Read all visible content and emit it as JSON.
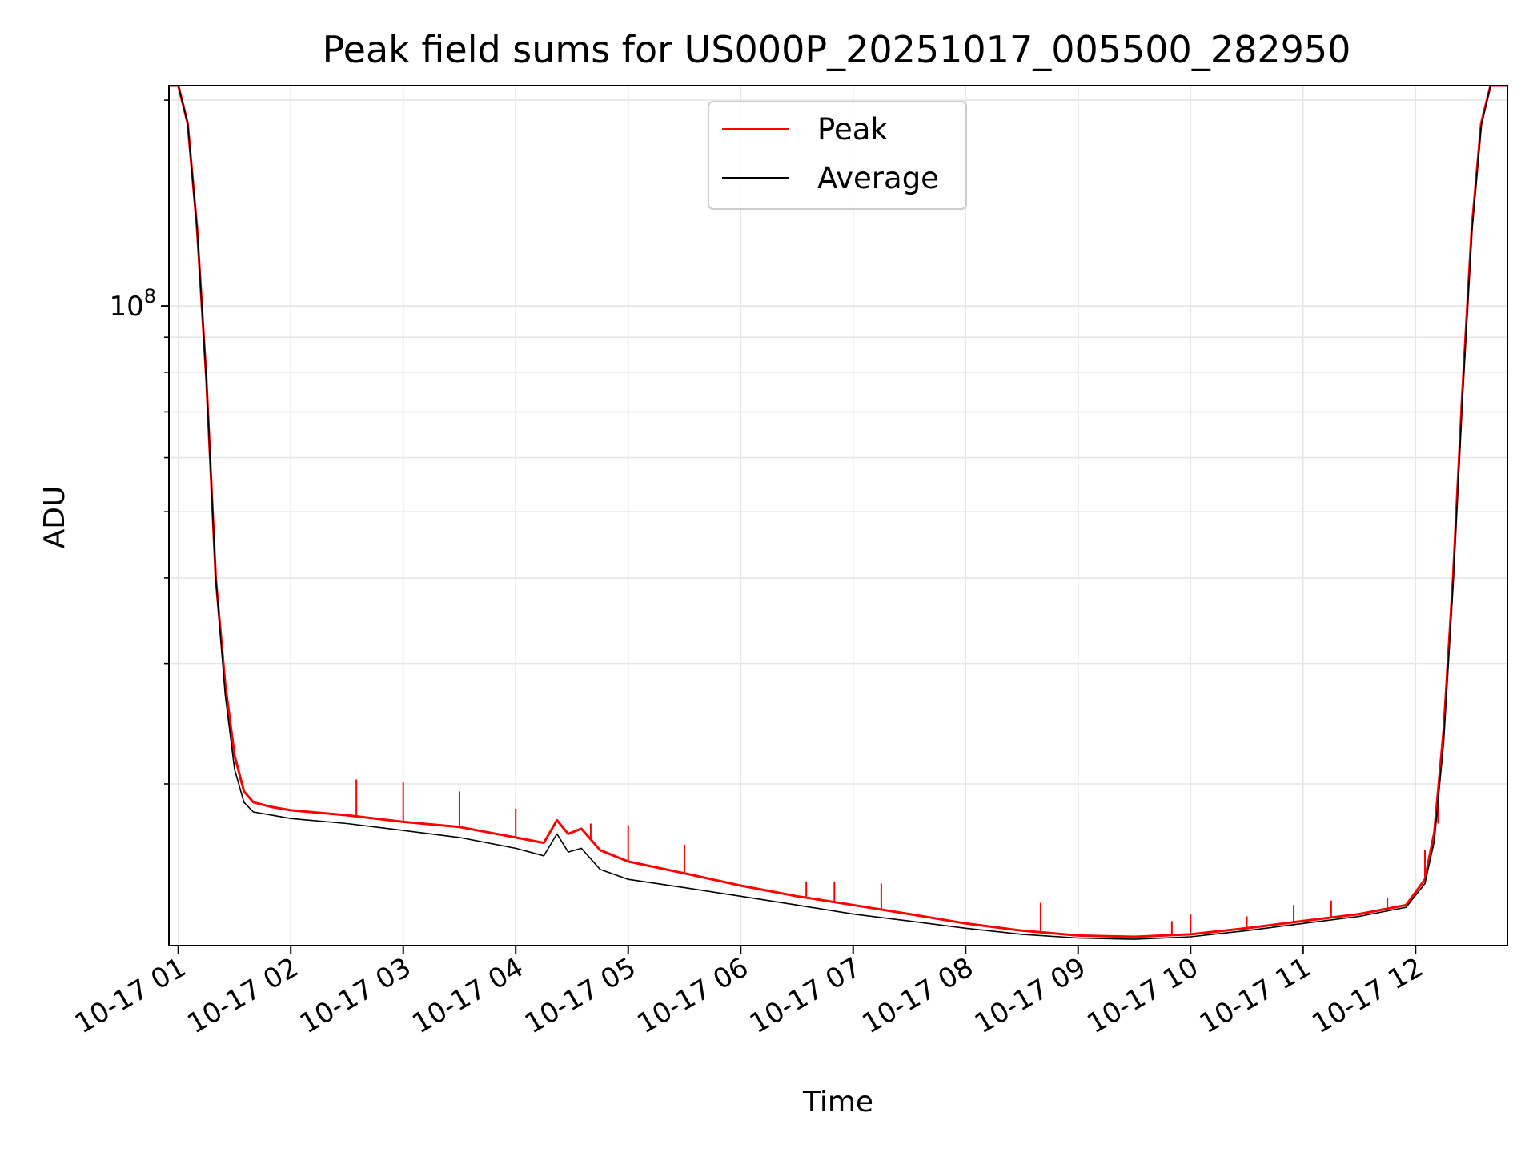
{
  "chart_data": {
    "type": "line",
    "title": "Peak field sums for US000P_20251017_005500_282950",
    "xlabel": "Time",
    "ylabel": "ADU",
    "yscale": "log",
    "ylim": [
      11600000,
      210000000
    ],
    "xlim": [
      "2025-10-17 00:55",
      "2025-10-17 12:49"
    ],
    "x_ticks": [
      "10-17 01",
      "10-17 02",
      "10-17 03",
      "10-17 04",
      "10-17 05",
      "10-17 06",
      "10-17 07",
      "10-17 08",
      "10-17 09",
      "10-17 10",
      "10-17 11",
      "10-17 12"
    ],
    "y_major_tick_label": "10",
    "y_major_tick_exponent": "8",
    "grid": true,
    "legend_position": "upper center",
    "series": [
      {
        "name": "Peak",
        "color": "#ff0000",
        "x": [
          "2025-10-17 00:55",
          "2025-10-17 01:00",
          "2025-10-17 01:05",
          "2025-10-17 01:10",
          "2025-10-17 01:15",
          "2025-10-17 01:20",
          "2025-10-17 01:25",
          "2025-10-17 01:30",
          "2025-10-17 01:35",
          "2025-10-17 01:40",
          "2025-10-17 01:50",
          "2025-10-17 02:00",
          "2025-10-17 02:30",
          "2025-10-17 03:00",
          "2025-10-17 03:30",
          "2025-10-17 04:00",
          "2025-10-17 04:15",
          "2025-10-17 04:22",
          "2025-10-17 04:28",
          "2025-10-17 04:35",
          "2025-10-17 04:45",
          "2025-10-17 05:00",
          "2025-10-17 05:30",
          "2025-10-17 06:00",
          "2025-10-17 06:30",
          "2025-10-17 07:00",
          "2025-10-17 07:30",
          "2025-10-17 08:00",
          "2025-10-17 08:30",
          "2025-10-17 09:00",
          "2025-10-17 09:30",
          "2025-10-17 10:00",
          "2025-10-17 10:30",
          "2025-10-17 11:00",
          "2025-10-17 11:30",
          "2025-10-17 11:55",
          "2025-10-17 12:05",
          "2025-10-17 12:10",
          "2025-10-17 12:15",
          "2025-10-17 12:20",
          "2025-10-17 12:25",
          "2025-10-17 12:30",
          "2025-10-17 12:35",
          "2025-10-17 12:40",
          "2025-10-17 12:45",
          "2025-10-17 12:49"
        ],
        "values": [
          210000000,
          210000000,
          185000000,
          130000000,
          78000000,
          40000000,
          28000000,
          22000000,
          19500000,
          18800000,
          18500000,
          18300000,
          18000000,
          17600000,
          17300000,
          16700000,
          16400000,
          17700000,
          16900000,
          17200000,
          16000000,
          15400000,
          14800000,
          14200000,
          13700000,
          13300000,
          12900000,
          12500000,
          12200000,
          12000000,
          11950000,
          12050000,
          12300000,
          12600000,
          12900000,
          13300000,
          14500000,
          17000000,
          24000000,
          40000000,
          75000000,
          130000000,
          185000000,
          210000000,
          210000000,
          210000000
        ],
        "spikes": [
          {
            "x": "2025-10-17 02:35",
            "value": 20300000
          },
          {
            "x": "2025-10-17 03:00",
            "value": 20100000
          },
          {
            "x": "2025-10-17 03:30",
            "value": 19500000
          },
          {
            "x": "2025-10-17 04:00",
            "value": 18400000
          },
          {
            "x": "2025-10-17 04:40",
            "value": 17500000
          },
          {
            "x": "2025-10-17 05:00",
            "value": 17400000
          },
          {
            "x": "2025-10-17 05:30",
            "value": 16300000
          },
          {
            "x": "2025-10-17 06:35",
            "value": 14400000
          },
          {
            "x": "2025-10-17 06:50",
            "value": 14400000
          },
          {
            "x": "2025-10-17 07:15",
            "value": 14300000
          },
          {
            "x": "2025-10-17 08:40",
            "value": 13400000
          },
          {
            "x": "2025-10-17 09:50",
            "value": 12600000
          },
          {
            "x": "2025-10-17 10:00",
            "value": 12900000
          },
          {
            "x": "2025-10-17 10:30",
            "value": 12800000
          },
          {
            "x": "2025-10-17 10:55",
            "value": 13300000
          },
          {
            "x": "2025-10-17 11:15",
            "value": 13500000
          },
          {
            "x": "2025-10-17 11:45",
            "value": 13600000
          },
          {
            "x": "2025-10-17 12:05",
            "value": 16000000
          },
          {
            "x": "2025-10-17 12:12",
            "value": 17500000
          }
        ]
      },
      {
        "name": "Average",
        "color": "#000000",
        "x": [
          "2025-10-17 00:55",
          "2025-10-17 01:00",
          "2025-10-17 01:05",
          "2025-10-17 01:10",
          "2025-10-17 01:15",
          "2025-10-17 01:20",
          "2025-10-17 01:25",
          "2025-10-17 01:30",
          "2025-10-17 01:35",
          "2025-10-17 01:40",
          "2025-10-17 01:50",
          "2025-10-17 02:00",
          "2025-10-17 02:30",
          "2025-10-17 03:00",
          "2025-10-17 03:30",
          "2025-10-17 04:00",
          "2025-10-17 04:15",
          "2025-10-17 04:22",
          "2025-10-17 04:28",
          "2025-10-17 04:35",
          "2025-10-17 04:45",
          "2025-10-17 05:00",
          "2025-10-17 05:30",
          "2025-10-17 06:00",
          "2025-10-17 06:30",
          "2025-10-17 07:00",
          "2025-10-17 07:30",
          "2025-10-17 08:00",
          "2025-10-17 08:30",
          "2025-10-17 09:00",
          "2025-10-17 09:30",
          "2025-10-17 10:00",
          "2025-10-17 10:30",
          "2025-10-17 11:00",
          "2025-10-17 11:30",
          "2025-10-17 11:55",
          "2025-10-17 12:05",
          "2025-10-17 12:10",
          "2025-10-17 12:15",
          "2025-10-17 12:20",
          "2025-10-17 12:25",
          "2025-10-17 12:30",
          "2025-10-17 12:35",
          "2025-10-17 12:40",
          "2025-10-17 12:45",
          "2025-10-17 12:49"
        ],
        "values": [
          210000000,
          210000000,
          185000000,
          130000000,
          78000000,
          40000000,
          27000000,
          21000000,
          18800000,
          18200000,
          18000000,
          17800000,
          17500000,
          17100000,
          16700000,
          16100000,
          15700000,
          16900000,
          15900000,
          16100000,
          15000000,
          14500000,
          14100000,
          13700000,
          13300000,
          12900000,
          12600000,
          12300000,
          12050000,
          11900000,
          11850000,
          11950000,
          12200000,
          12500000,
          12800000,
          13200000,
          14300000,
          16500000,
          23000000,
          39000000,
          73000000,
          128000000,
          183000000,
          210000000,
          210000000,
          210000000
        ]
      }
    ]
  }
}
